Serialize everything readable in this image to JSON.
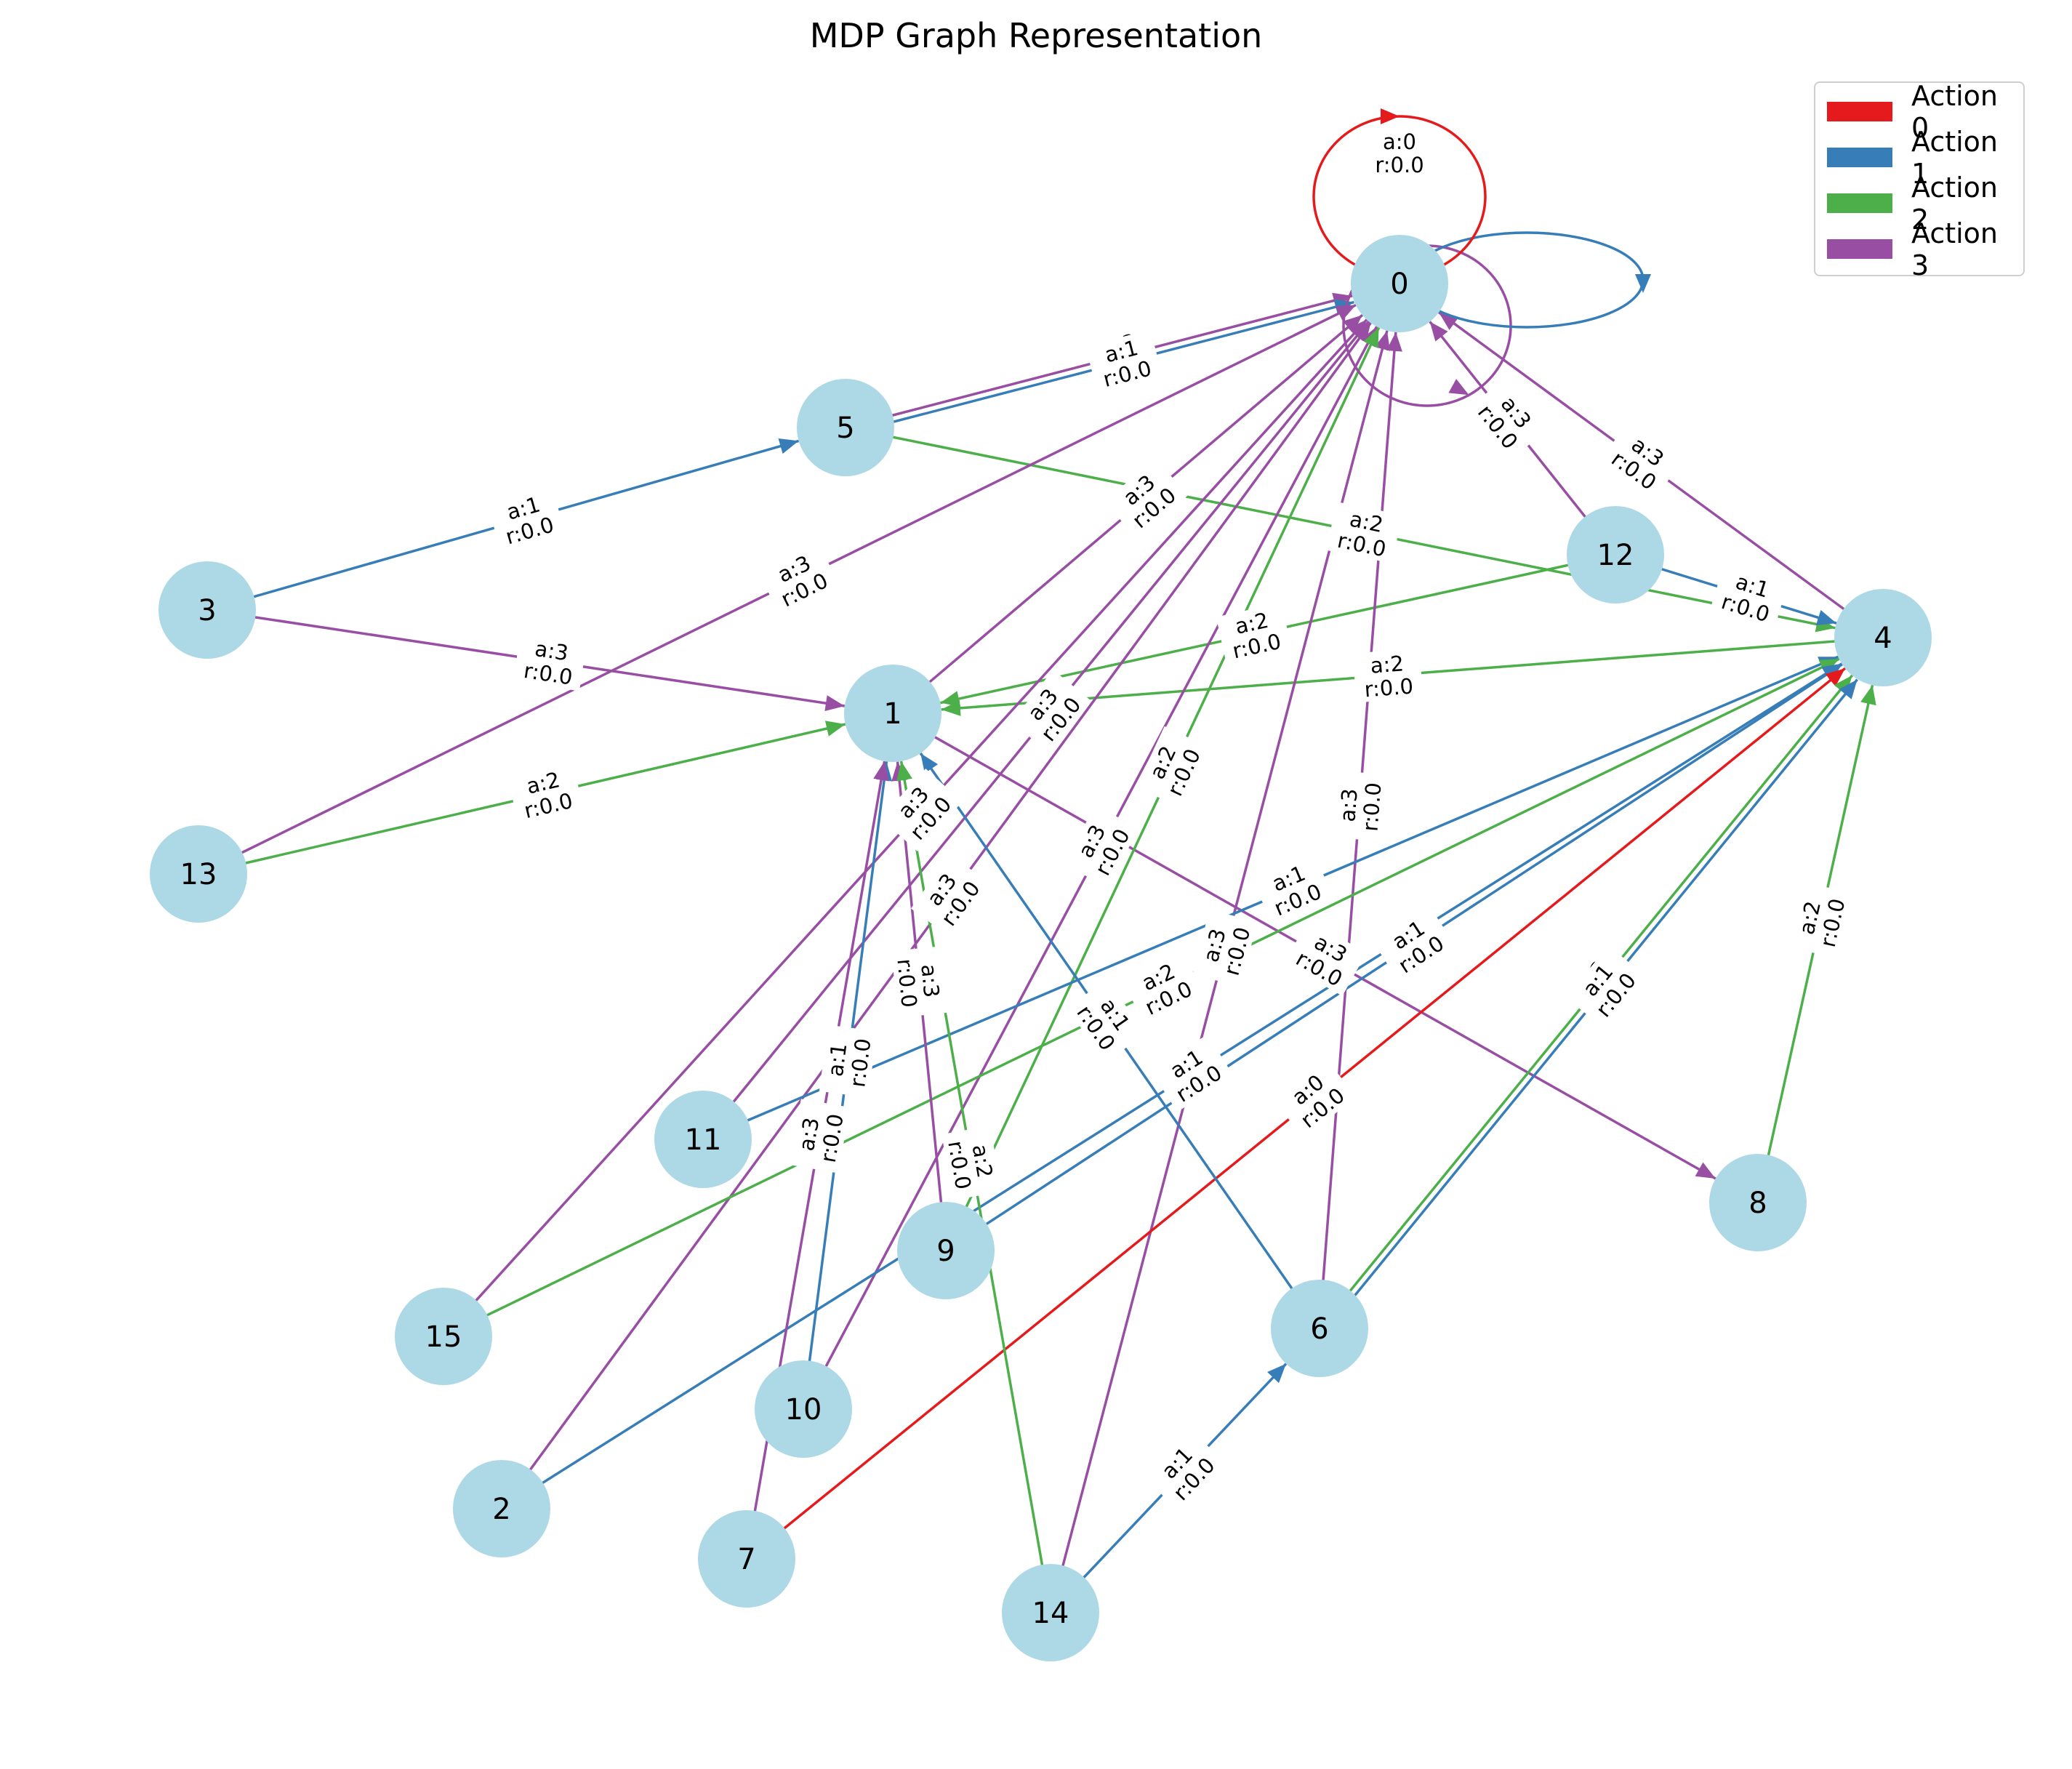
{
  "title": "MDP Graph Representation",
  "legend": [
    {
      "label": "Action 0",
      "color": "#e41a1c"
    },
    {
      "label": "Action 1",
      "color": "#377eb8"
    },
    {
      "label": "Action 2",
      "color": "#4daf4a"
    },
    {
      "label": "Action 3",
      "color": "#984ea3"
    }
  ],
  "node_color": "#add8e6",
  "nodes": [
    "0",
    "1",
    "2",
    "3",
    "4",
    "5",
    "6",
    "7",
    "8",
    "9",
    "10",
    "11",
    "12",
    "13",
    "14",
    "15"
  ],
  "edges": [
    {
      "from": "0",
      "to": "0",
      "action": 3,
      "label": "a:3\nr:0.0"
    },
    {
      "from": "0",
      "to": "0",
      "action": 1,
      "label": "a:1\nr:0.0"
    },
    {
      "from": "0",
      "to": "0",
      "action": 0,
      "label": "a:0\nr:0.0"
    },
    {
      "from": "5",
      "to": "0",
      "action": 3,
      "label": "a:3\nr:0.0"
    },
    {
      "from": "5",
      "to": "0",
      "action": 1,
      "label": "a:1\nr:0.0"
    },
    {
      "from": "3",
      "to": "5",
      "action": 1,
      "label": "a:1\nr:0.0"
    },
    {
      "from": "5",
      "to": "4",
      "action": 2,
      "label": "a:2\nr:0.0"
    },
    {
      "from": "12",
      "to": "0",
      "action": 3,
      "label": "a:3\nr:0.0"
    },
    {
      "from": "4",
      "to": "0",
      "action": 3,
      "label": "a:3\nr:0.0"
    },
    {
      "from": "12",
      "to": "4",
      "action": 1,
      "label": "a:1\nr:0.0"
    },
    {
      "from": "1",
      "to": "0",
      "action": 3,
      "label": "a:3\nr:0.0"
    },
    {
      "from": "13",
      "to": "0",
      "action": 3,
      "label": "a:3\nr:0.0"
    },
    {
      "from": "3",
      "to": "1",
      "action": 3,
      "label": "a:3\nr:0.0"
    },
    {
      "from": "13",
      "to": "1",
      "action": 2,
      "label": "a:2\nr:0.0"
    },
    {
      "from": "12",
      "to": "1",
      "action": 2,
      "label": "a:2\nr:0.0"
    },
    {
      "from": "4",
      "to": "1",
      "action": 2,
      "label": "a:2\nr:0.0"
    },
    {
      "from": "1",
      "to": "8",
      "action": 3,
      "label": "a:3\nr:0.0"
    },
    {
      "from": "15",
      "to": "0",
      "action": 3,
      "label": "a:3\nr:0.0"
    },
    {
      "from": "11",
      "to": "0",
      "action": 3,
      "label": "a:3\nr:0.0"
    },
    {
      "from": "2",
      "to": "0",
      "action": 3,
      "label": "a:3\nr:0.0"
    },
    {
      "from": "10",
      "to": "0",
      "action": 3,
      "label": "a:3\nr:0.0"
    },
    {
      "from": "14",
      "to": "0",
      "action": 3,
      "label": "a:3\nr:0.0"
    },
    {
      "from": "6",
      "to": "0",
      "action": 3,
      "label": "a:3\nr:0.0"
    },
    {
      "from": "9",
      "to": "0",
      "action": 2,
      "label": "a:2\nr:0.0"
    },
    {
      "from": "11",
      "to": "4",
      "action": 1,
      "label": "a:1\nr:0.0"
    },
    {
      "from": "15",
      "to": "4",
      "action": 2,
      "label": "a:2\nr:0.0"
    },
    {
      "from": "9",
      "to": "4",
      "action": 1,
      "label": "a:1\nr:0.0"
    },
    {
      "from": "2",
      "to": "4",
      "action": 1,
      "label": "a:1\nr:0.0"
    },
    {
      "from": "7",
      "to": "4",
      "action": 0,
      "label": "a:0\nr:0.0"
    },
    {
      "from": "6",
      "to": "4",
      "action": 2,
      "label": "a:2\nr:0.0"
    },
    {
      "from": "6",
      "to": "4",
      "action": 1,
      "label": "a:1\nr:0.0"
    },
    {
      "from": "8",
      "to": "4",
      "action": 2,
      "label": "a:2\nr:0.0"
    },
    {
      "from": "10",
      "to": "1",
      "action": 1,
      "label": "a:1\nr:0.0"
    },
    {
      "from": "7",
      "to": "1",
      "action": 3,
      "label": "a:3\nr:0.0"
    },
    {
      "from": "9",
      "to": "1",
      "action": 3,
      "label": "a:3\nr:0.0"
    },
    {
      "from": "14",
      "to": "1",
      "action": 2,
      "label": "a:2\nr:0.0"
    },
    {
      "from": "6",
      "to": "1",
      "action": 1,
      "label": "a:1\nr:0.0"
    },
    {
      "from": "14",
      "to": "6",
      "action": 1,
      "label": "a:1\nr:0.0"
    }
  ]
}
